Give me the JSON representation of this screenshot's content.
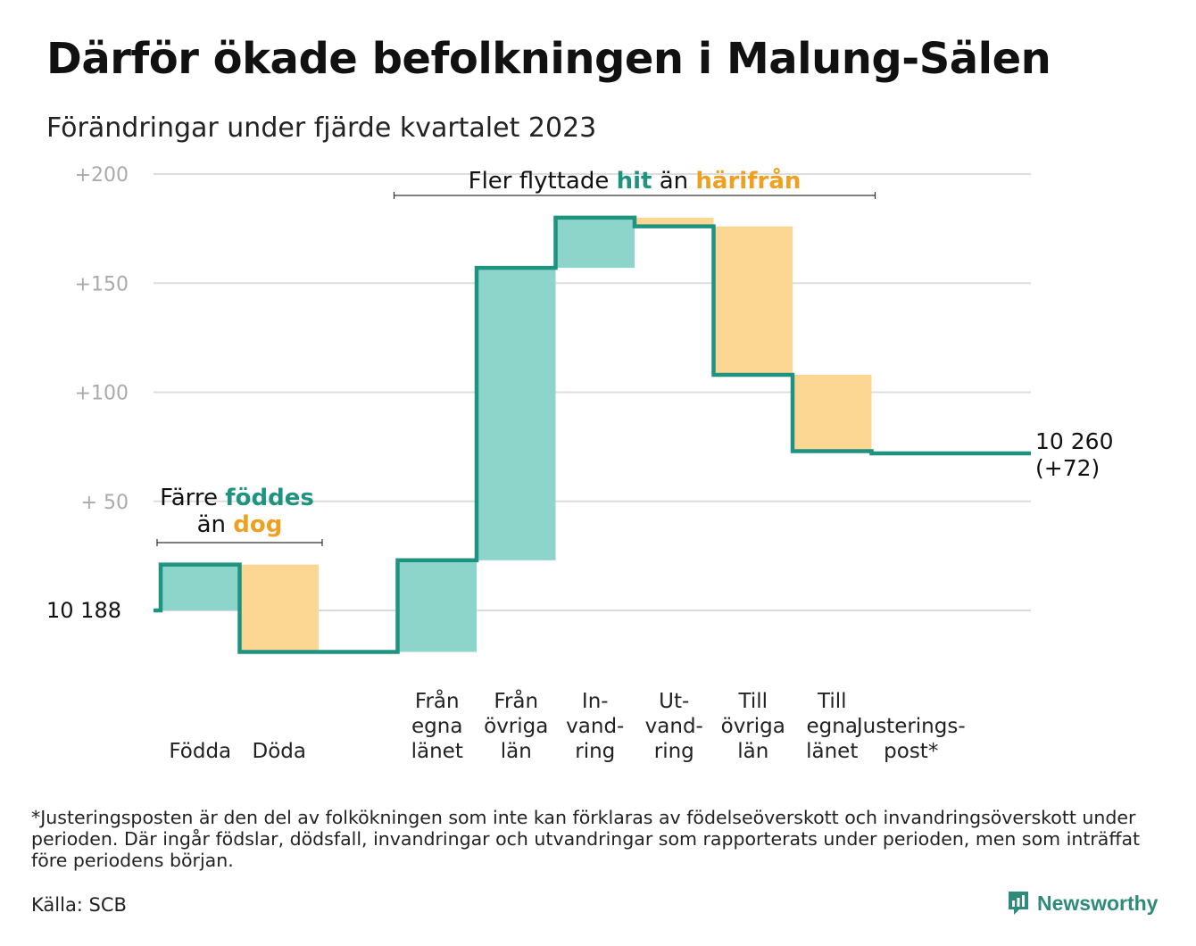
{
  "title": "Därför ökade befolkningen i Malung-Sälen",
  "subtitle": "Förändringar under fjärde kvartalet 2023",
  "chart_data": {
    "type": "waterfall",
    "base_label": "10  188",
    "y_ticks": [
      {
        "value": 200,
        "label": "+200"
      },
      {
        "value": 150,
        "label": "+150"
      },
      {
        "value": 100,
        "label": "+100"
      },
      {
        "value": 50,
        "label": "+  50"
      },
      {
        "value": 0,
        "label": ""
      }
    ],
    "ylim": [
      -30,
      205
    ],
    "steps": [
      {
        "label_lines": [
          "Födda"
        ],
        "start": 0,
        "end": 21,
        "kind": "in"
      },
      {
        "label_lines": [
          "Döda"
        ],
        "start": 21,
        "end": -19,
        "kind": "out"
      },
      {
        "label_lines": [
          ""
        ],
        "start": -19,
        "end": -19,
        "kind": "flat"
      },
      {
        "label_lines": [
          "Från",
          "egna",
          "länet"
        ],
        "start": -19,
        "end": 23,
        "kind": "in"
      },
      {
        "label_lines": [
          "Från",
          "övriga",
          "län"
        ],
        "start": 23,
        "end": 157,
        "kind": "in"
      },
      {
        "label_lines": [
          "In-",
          "vand-",
          "ring"
        ],
        "start": 157,
        "end": 180,
        "kind": "in"
      },
      {
        "label_lines": [
          "Ut-",
          "vand-",
          "ring"
        ],
        "start": 180,
        "end": 176,
        "kind": "out"
      },
      {
        "label_lines": [
          "Till",
          "övriga",
          "län"
        ],
        "start": 176,
        "end": 108,
        "kind": "out"
      },
      {
        "label_lines": [
          "Till",
          "egna",
          "länet"
        ],
        "start": 108,
        "end": 73,
        "kind": "out"
      },
      {
        "label_lines": [
          "Justerings-",
          "post*"
        ],
        "start": 73,
        "end": 72,
        "kind": "adj"
      }
    ],
    "end_label": [
      "10 260",
      "(+72)"
    ],
    "annotations": [
      {
        "parts": [
          {
            "text": "Färre ",
            "style": "plain"
          },
          {
            "text": "föddes",
            "style": "in"
          }
        ],
        "parts2": [
          {
            "text": "än ",
            "style": "plain"
          },
          {
            "text": "dog",
            "style": "out"
          }
        ],
        "from_step": 0,
        "to_step": 1
      },
      {
        "parts": [
          {
            "text": "Fler flyttade ",
            "style": "plain"
          },
          {
            "text": "hit",
            "style": "in"
          },
          {
            "text": "  än ",
            "style": "plain"
          },
          {
            "text": "härifrån",
            "style": "out"
          }
        ],
        "from_step": 3,
        "to_step": 8
      }
    ],
    "colors": {
      "in": "#8dd5cb",
      "out": "#fcd794",
      "line": "#1e9480",
      "in_text": "#1e9480",
      "out_text": "#f0a021",
      "grid": "#dddddd"
    }
  },
  "footnote": "*Justeringsposten är den del av folkökningen som inte kan förklaras av födelseöverskott och invandringsöverskott under perioden. Där ingår födslar, dödsfall, invandringar och utvandringar som rapporterats under perioden, men som inträffat före periodens början.",
  "source": "Källa: SCB",
  "brand": {
    "name": "Newsworthy",
    "icon": "newsworthy-logo-icon"
  }
}
